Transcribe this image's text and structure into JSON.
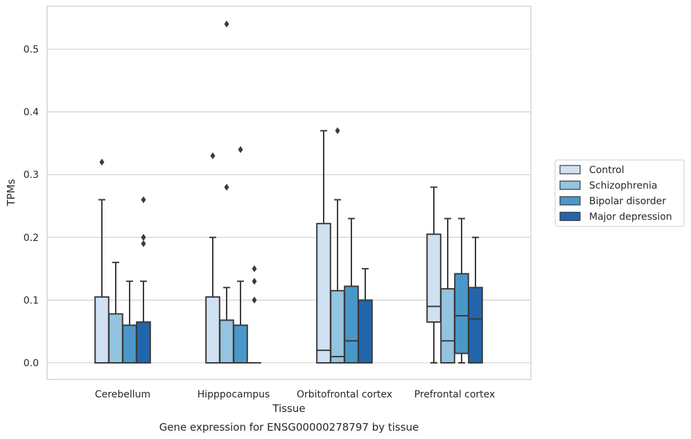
{
  "chart_data": {
    "type": "box",
    "caption": "Gene expression for ENSG00000278797 by tissue",
    "xlabel": "Tissue",
    "ylabel": "TPMs",
    "ylim": [
      -0.025,
      0.56
    ],
    "yticks": [
      0.0,
      0.1,
      0.2,
      0.3,
      0.4,
      0.5
    ],
    "ytick_labels": [
      "0.0",
      "0.1",
      "0.2",
      "0.3",
      "0.4",
      "0.5"
    ],
    "grid": "horizontal",
    "legend_position": "right",
    "categories": [
      "Cerebellum",
      "Hipppocampus",
      "Orbitofrontal cortex",
      "Prefrontal cortex"
    ],
    "series": [
      {
        "name": "Control",
        "color": "#d0e1f2",
        "boxes": [
          {
            "whisker_low": 0.0,
            "q1": 0.0,
            "median": 0.0,
            "q3": 0.105,
            "whisker_high": 0.26,
            "outliers": [
              0.32
            ]
          },
          {
            "whisker_low": 0.0,
            "q1": 0.0,
            "median": 0.0,
            "q3": 0.105,
            "whisker_high": 0.2,
            "outliers": [
              0.33
            ]
          },
          {
            "whisker_low": 0.0,
            "q1": 0.0,
            "median": 0.02,
            "q3": 0.222,
            "whisker_high": 0.37,
            "outliers": []
          },
          {
            "whisker_low": 0.0,
            "q1": 0.065,
            "median": 0.09,
            "q3": 0.205,
            "whisker_high": 0.28,
            "outliers": []
          }
        ]
      },
      {
        "name": "Schizophrenia",
        "color": "#94c4df",
        "boxes": [
          {
            "whisker_low": 0.0,
            "q1": 0.0,
            "median": 0.0,
            "q3": 0.078,
            "whisker_high": 0.16,
            "outliers": []
          },
          {
            "whisker_low": 0.0,
            "q1": 0.0,
            "median": 0.0,
            "q3": 0.068,
            "whisker_high": 0.12,
            "outliers": [
              0.28,
              0.54
            ]
          },
          {
            "whisker_low": 0.0,
            "q1": 0.0,
            "median": 0.01,
            "q3": 0.115,
            "whisker_high": 0.26,
            "outliers": [
              0.37
            ]
          },
          {
            "whisker_low": 0.0,
            "q1": 0.0,
            "median": 0.035,
            "q3": 0.118,
            "whisker_high": 0.23,
            "outliers": []
          }
        ]
      },
      {
        "name": "Bipolar disorder",
        "color": "#4a98c9",
        "boxes": [
          {
            "whisker_low": 0.0,
            "q1": 0.0,
            "median": 0.0,
            "q3": 0.06,
            "whisker_high": 0.13,
            "outliers": []
          },
          {
            "whisker_low": 0.0,
            "q1": 0.0,
            "median": 0.0,
            "q3": 0.06,
            "whisker_high": 0.13,
            "outliers": [
              0.34
            ]
          },
          {
            "whisker_low": 0.0,
            "q1": 0.0,
            "median": 0.035,
            "q3": 0.122,
            "whisker_high": 0.23,
            "outliers": []
          },
          {
            "whisker_low": 0.0,
            "q1": 0.015,
            "median": 0.075,
            "q3": 0.142,
            "whisker_high": 0.23,
            "outliers": []
          }
        ]
      },
      {
        "name": "Major depression",
        "color": "#2166ac",
        "boxes": [
          {
            "whisker_low": 0.0,
            "q1": 0.0,
            "median": 0.0,
            "q3": 0.065,
            "whisker_high": 0.13,
            "outliers": [
              0.19,
              0.2,
              0.26
            ]
          },
          {
            "whisker_low": 0.0,
            "q1": 0.0,
            "median": 0.0,
            "q3": 0.0,
            "whisker_high": 0.0,
            "outliers": [
              0.1,
              0.13,
              0.15
            ]
          },
          {
            "whisker_low": 0.0,
            "q1": 0.0,
            "median": 0.0,
            "q3": 0.1,
            "whisker_high": 0.15,
            "outliers": []
          },
          {
            "whisker_low": 0.0,
            "q1": 0.0,
            "median": 0.07,
            "q3": 0.12,
            "whisker_high": 0.2,
            "outliers": []
          }
        ]
      }
    ]
  }
}
